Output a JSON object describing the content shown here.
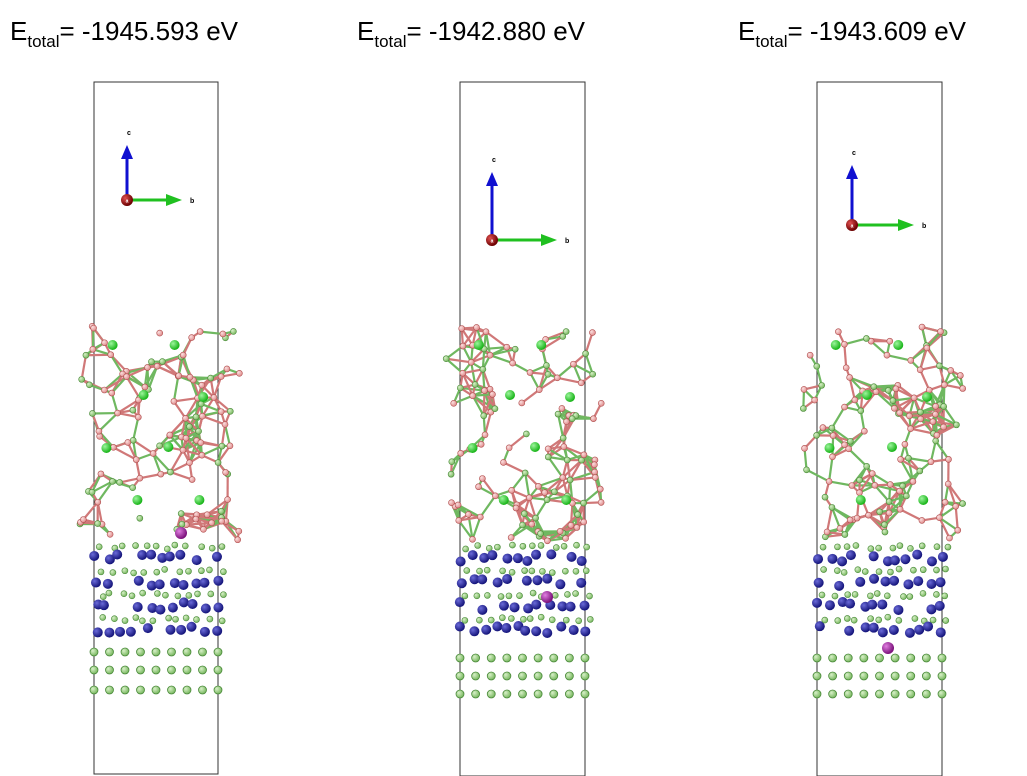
{
  "panels": [
    {
      "label_main": "E",
      "label_sub": "total",
      "label_rest": "= -1945.593 eV",
      "axis_c": "c",
      "axis_b": "b",
      "axis_a": "a"
    },
    {
      "label_main": "E",
      "label_sub": "total",
      "label_rest": "= -1942.880 eV",
      "axis_c": "c",
      "axis_b": "b",
      "axis_a": "a"
    },
    {
      "label_main": "E",
      "label_sub": "total",
      "label_rest": "= -1943.609 eV",
      "axis_c": "c",
      "axis_b": "b",
      "axis_a": "a"
    }
  ]
}
